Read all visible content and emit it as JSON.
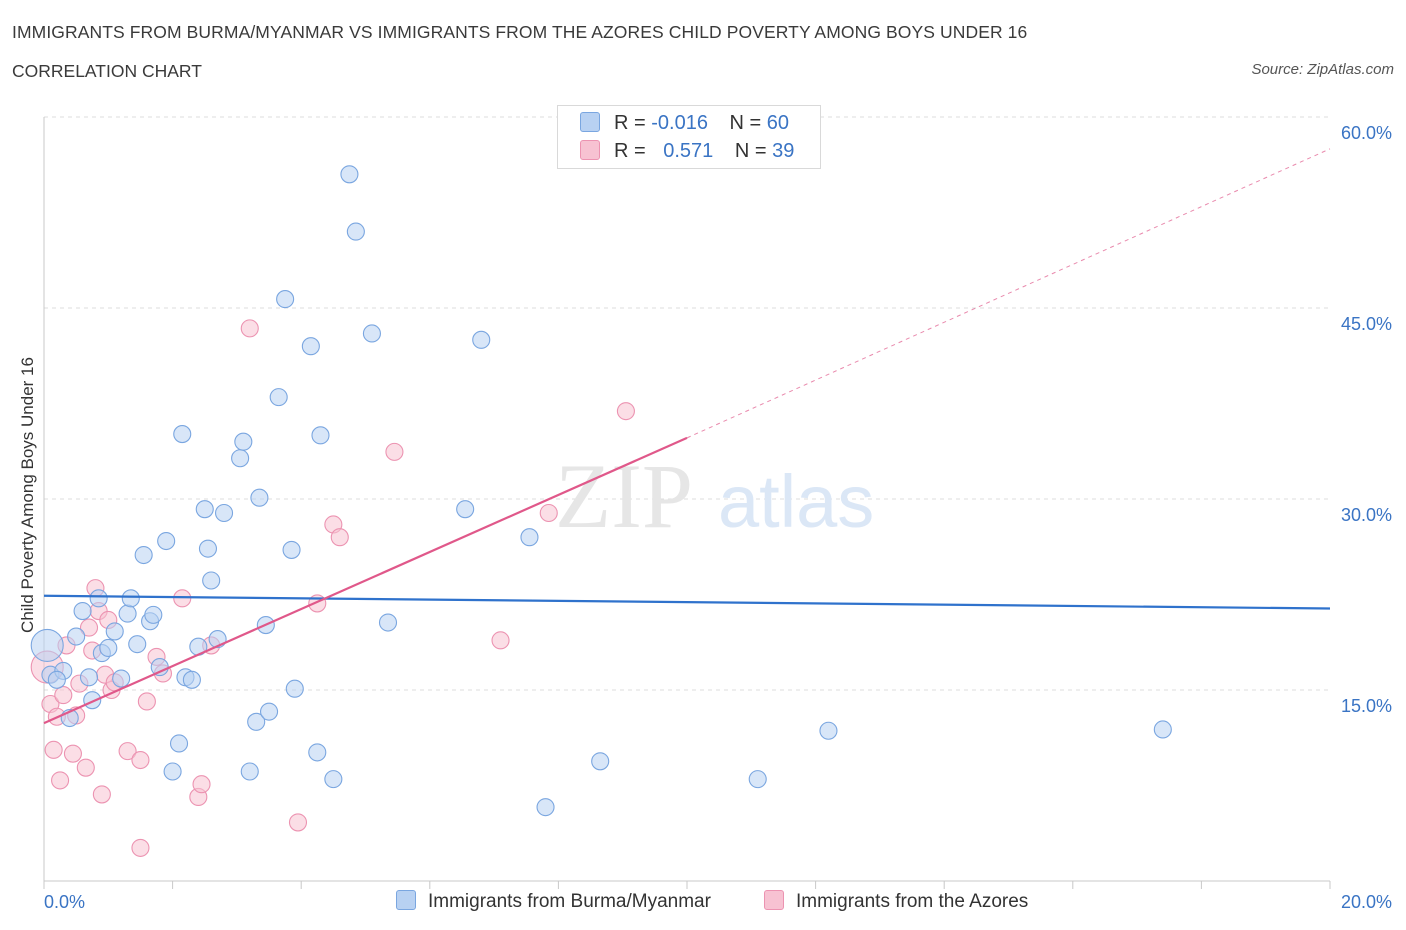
{
  "header": {
    "title": "IMMIGRANTS FROM BURMA/MYANMAR VS IMMIGRANTS FROM THE AZORES CHILD POVERTY AMONG BOYS UNDER 16",
    "subtitle": "CORRELATION CHART",
    "source": "Source: ZipAtlas.com"
  },
  "watermark": {
    "zip": "ZIP",
    "atlas": "atlas"
  },
  "colors": {
    "blue_fill": "#b8d1f2",
    "blue_stroke": "#7aa6e0",
    "blue_line": "#2f72cc",
    "pink_fill": "#f7c2d2",
    "pink_stroke": "#ec93b1",
    "pink_line": "#e0588a",
    "tick_label": "#3a74c4",
    "grid": "#dddddd"
  },
  "legend": {
    "rows": [
      {
        "r_label": "R =",
        "r_value": "-0.016",
        "n_label": "N =",
        "n_value": "60"
      },
      {
        "r_label": "R =",
        "r_value": "0.571",
        "n_label": "N =",
        "n_value": "39"
      }
    ]
  },
  "chart_data": {
    "type": "scatter",
    "title": "IMMIGRANTS FROM BURMA/MYANMAR VS IMMIGRANTS FROM THE AZORES CHILD POVERTY AMONG BOYS UNDER 16",
    "subtitle": "CORRELATION CHART",
    "xlabel": "",
    "ylabel": "Child Poverty Among Boys Under 16",
    "xlim": [
      0,
      20
    ],
    "ylim": [
      0,
      60
    ],
    "x_tick_labels": [
      "0.0%",
      "20.0%"
    ],
    "y_ticks": [
      15,
      30,
      45,
      60
    ],
    "y_tick_labels": [
      "15.0%",
      "30.0%",
      "45.0%",
      "60.0%"
    ],
    "grid": true,
    "legend_position": "top-center",
    "series": [
      {
        "name": "Immigrants from Burma/Myanmar",
        "R": -0.016,
        "N": 60,
        "trend": {
          "x": [
            0,
            20
          ],
          "y": [
            22.4,
            21.4
          ]
        },
        "points": [
          [
            0.05,
            18.5
          ],
          [
            0.1,
            16.2
          ],
          [
            0.3,
            16.5
          ],
          [
            0.4,
            12.8
          ],
          [
            0.5,
            19.2
          ],
          [
            0.6,
            21.2
          ],
          [
            0.7,
            16.0
          ],
          [
            0.75,
            14.2
          ],
          [
            0.85,
            22.2
          ],
          [
            0.9,
            17.9
          ],
          [
            1.0,
            18.3
          ],
          [
            1.1,
            19.6
          ],
          [
            1.2,
            15.9
          ],
          [
            1.3,
            21.0
          ],
          [
            1.35,
            22.2
          ],
          [
            1.45,
            18.6
          ],
          [
            1.55,
            25.6
          ],
          [
            1.65,
            20.4
          ],
          [
            1.7,
            20.9
          ],
          [
            1.8,
            16.8
          ],
          [
            1.9,
            26.7
          ],
          [
            2.0,
            8.6
          ],
          [
            2.1,
            10.8
          ],
          [
            2.15,
            35.1
          ],
          [
            2.2,
            16.0
          ],
          [
            2.3,
            15.8
          ],
          [
            2.4,
            18.4
          ],
          [
            2.5,
            29.2
          ],
          [
            2.55,
            26.1
          ],
          [
            2.6,
            23.6
          ],
          [
            2.7,
            19.0
          ],
          [
            2.8,
            28.9
          ],
          [
            3.05,
            33.2
          ],
          [
            3.1,
            34.5
          ],
          [
            3.2,
            8.6
          ],
          [
            3.3,
            12.5
          ],
          [
            3.35,
            30.1
          ],
          [
            3.45,
            20.1
          ],
          [
            3.5,
            13.3
          ],
          [
            3.65,
            38.0
          ],
          [
            3.75,
            45.7
          ],
          [
            3.85,
            26.0
          ],
          [
            3.9,
            15.1
          ],
          [
            4.15,
            42.0
          ],
          [
            4.25,
            10.1
          ],
          [
            4.3,
            35.0
          ],
          [
            4.5,
            8.0
          ],
          [
            4.75,
            55.5
          ],
          [
            4.85,
            51.0
          ],
          [
            5.1,
            43.0
          ],
          [
            5.35,
            20.3
          ],
          [
            6.55,
            29.2
          ],
          [
            6.8,
            42.5
          ],
          [
            7.55,
            27.0
          ],
          [
            7.8,
            5.8
          ],
          [
            8.65,
            9.4
          ],
          [
            11.1,
            8.0
          ],
          [
            12.2,
            11.8
          ],
          [
            17.4,
            11.9
          ],
          [
            0.2,
            15.8
          ]
        ]
      },
      {
        "name": "Immigrants from the Azores",
        "R": 0.571,
        "N": 39,
        "trend": {
          "x": [
            0,
            10
          ],
          "y": [
            12.4,
            34.8
          ]
        },
        "trend_dashed": {
          "x": [
            10,
            20
          ],
          "y": [
            34.8,
            57.5
          ]
        },
        "points": [
          [
            0.05,
            16.8
          ],
          [
            0.1,
            13.9
          ],
          [
            0.15,
            10.3
          ],
          [
            0.2,
            12.9
          ],
          [
            0.25,
            7.9
          ],
          [
            0.3,
            14.6
          ],
          [
            0.35,
            18.5
          ],
          [
            0.45,
            10.0
          ],
          [
            0.5,
            13.0
          ],
          [
            0.55,
            15.5
          ],
          [
            0.65,
            8.9
          ],
          [
            0.7,
            19.9
          ],
          [
            0.75,
            18.1
          ],
          [
            0.8,
            23.0
          ],
          [
            0.85,
            21.2
          ],
          [
            0.9,
            6.8
          ],
          [
            0.95,
            16.2
          ],
          [
            1.0,
            20.5
          ],
          [
            1.05,
            15.0
          ],
          [
            1.1,
            15.6
          ],
          [
            1.3,
            10.2
          ],
          [
            1.5,
            9.5
          ],
          [
            1.6,
            14.1
          ],
          [
            1.75,
            17.6
          ],
          [
            1.85,
            16.3
          ],
          [
            2.15,
            22.2
          ],
          [
            2.4,
            6.6
          ],
          [
            2.45,
            7.6
          ],
          [
            2.6,
            18.5
          ],
          [
            3.2,
            43.4
          ],
          [
            3.95,
            4.6
          ],
          [
            4.25,
            21.8
          ],
          [
            4.5,
            28.0
          ],
          [
            4.6,
            27.0
          ],
          [
            5.45,
            33.7
          ],
          [
            7.1,
            18.9
          ],
          [
            7.85,
            28.9
          ],
          [
            9.05,
            36.9
          ],
          [
            1.5,
            2.6
          ]
        ]
      }
    ]
  }
}
